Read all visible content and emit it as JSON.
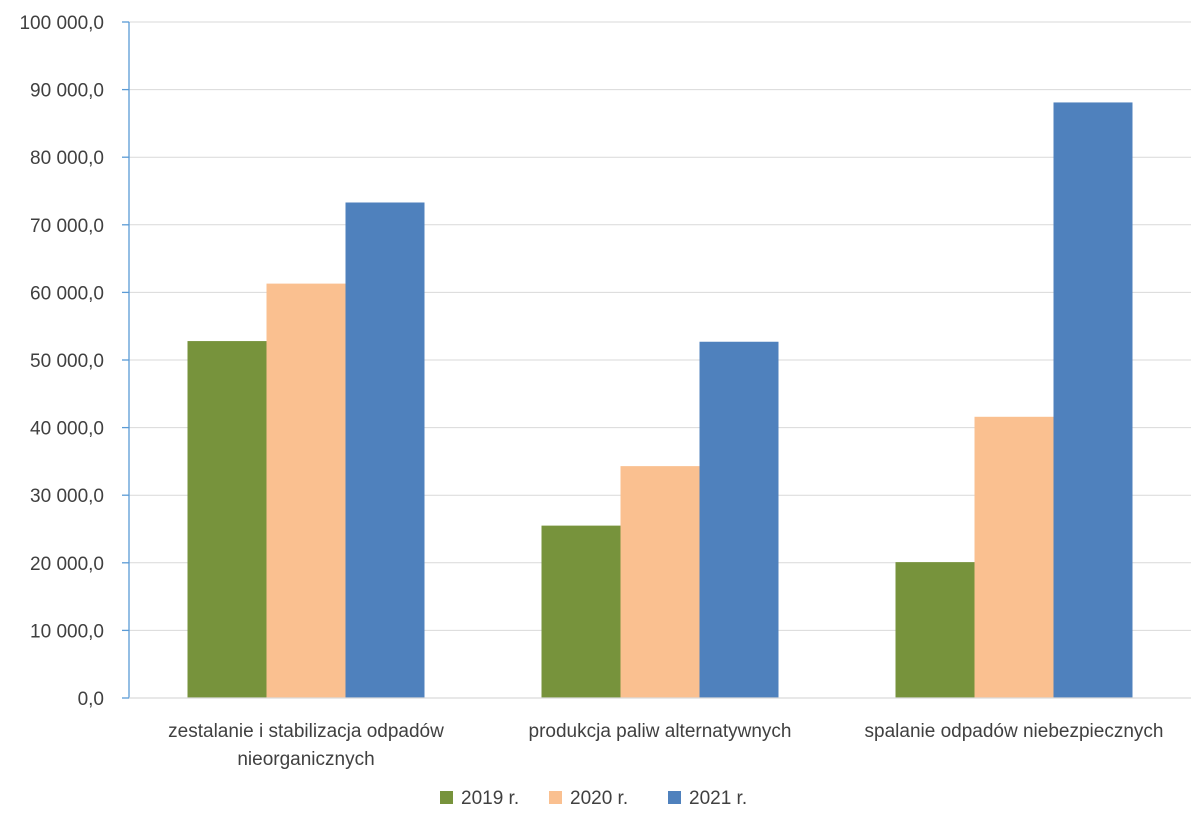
{
  "chart_data": {
    "type": "bar",
    "title": "",
    "xlabel": "",
    "ylabel": "",
    "ylim": [
      0,
      100000
    ],
    "yticks": [
      0,
      10000,
      20000,
      30000,
      40000,
      50000,
      60000,
      70000,
      80000,
      90000,
      100000
    ],
    "ytick_labels": [
      "0,0",
      "10 000,0",
      "20 000,0",
      "30 000,0",
      "40 000,0",
      "50 000,0",
      "60 000,0",
      "70 000,0",
      "80 000,0",
      "90 000,0",
      "100 000,0"
    ],
    "grid": true,
    "legend_position": "bottom",
    "categories": [
      [
        "zestalanie i stabilizacja odpadów",
        "nieorganicznych"
      ],
      [
        "produkcja paliw alternatywnych"
      ],
      [
        "spalanie odpadów niebezpiecznych"
      ]
    ],
    "series": [
      {
        "name": "2019 r.",
        "color": "#77933C",
        "values": [
          52800,
          25500,
          20100
        ]
      },
      {
        "name": "2020 r.",
        "color": "#FAC090",
        "values": [
          61300,
          34300,
          41600
        ]
      },
      {
        "name": "2021 r.",
        "color": "#4F81BD",
        "values": [
          73300,
          52700,
          88100
        ]
      }
    ]
  }
}
